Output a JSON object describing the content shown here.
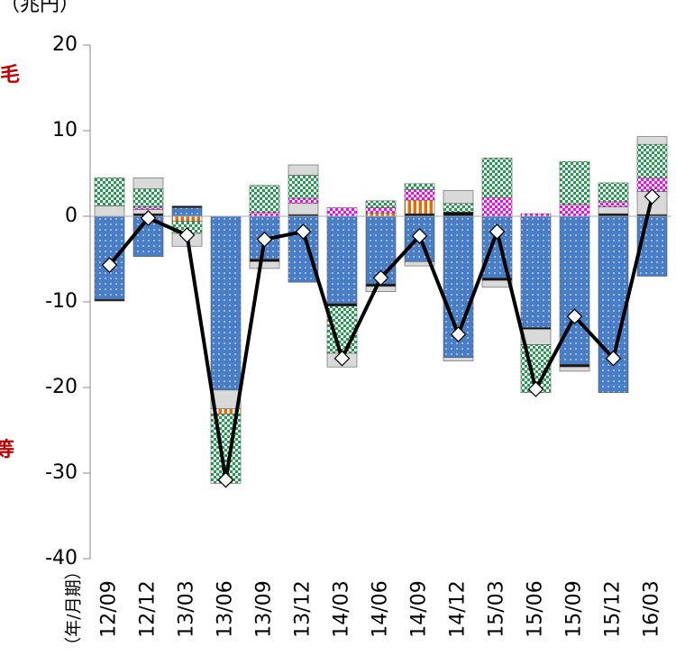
{
  "chart_data": {
    "type": "bar",
    "unit_label": "（兆円）",
    "x_label": "（年/月期）",
    "annotations": [
      "毛",
      "等"
    ],
    "categories": [
      "12/09",
      "12/12",
      "13/03",
      "13/06",
      "13/09",
      "13/12",
      "14/03",
      "14/06",
      "14/09",
      "14/12",
      "15/03",
      "15/06",
      "15/09",
      "15/12",
      "16/03"
    ],
    "ylim": [
      -40,
      20
    ],
    "yticks": [
      -40,
      -30,
      -20,
      -10,
      0,
      10,
      20
    ],
    "series": [
      {
        "color": "#4a7ec4",
        "pattern": "dots",
        "values": [
          -9.7,
          -4.7,
          1.0,
          -20.3,
          -5.0,
          -7.7,
          -10.2,
          -7.9,
          -5.3,
          -16.5,
          -7.2,
          -13.0,
          -17.3,
          -20.6,
          -7.0
        ]
      },
      {
        "color": "#111111",
        "pattern": "solid",
        "values": [
          -0.2,
          0.3,
          0.2,
          0,
          -0.3,
          0.2,
          -0.3,
          -0.3,
          0.3,
          0.5,
          -0.3,
          -0.2,
          -0.3,
          0.3,
          0.2
        ]
      },
      {
        "color": "#d9d9d9",
        "pattern": "solid",
        "values": [
          1.2,
          0.5,
          0,
          -2.2,
          -0.8,
          1.3,
          0,
          -0.6,
          -0.5,
          -0.4,
          -0.8,
          -1.8,
          -0.5,
          0.8,
          2.7
        ]
      },
      {
        "color": "#e36c09",
        "pattern": "stripes",
        "values": [
          0,
          0,
          -0.6,
          -0.6,
          0,
          0,
          0,
          0.4,
          1.6,
          0,
          0,
          0,
          0,
          0,
          0
        ]
      },
      {
        "color": "#ff00ff",
        "pattern": "checker",
        "values": [
          0,
          0.3,
          0,
          0,
          0.5,
          0.6,
          1.0,
          0.6,
          1.2,
          0,
          2.2,
          0.3,
          1.4,
          0.6,
          1.6
        ]
      },
      {
        "color": "#1e9e4a",
        "pattern": "checker",
        "values": [
          3.3,
          2.1,
          -1.4,
          -8.1,
          3.1,
          2.7,
          -5.5,
          0.8,
          0.7,
          1.0,
          4.6,
          -5.6,
          5.0,
          2.2,
          3.9
        ]
      },
      {
        "color": "#d9d9d9",
        "pattern": "solid",
        "values": [
          0,
          1.3,
          -1.5,
          0,
          0,
          1.2,
          -1.6,
          0,
          0,
          1.5,
          0,
          0,
          0,
          0,
          0.9
        ]
      },
      {
        "type": "line",
        "color": "#000000",
        "values": [
          -5.7,
          -0.2,
          -2.2,
          -30.8,
          -2.7,
          -1.8,
          -16.6,
          -7.2,
          -2.3,
          -13.8,
          -1.8,
          -20.2,
          -11.7,
          -16.6,
          2.3
        ]
      }
    ]
  }
}
